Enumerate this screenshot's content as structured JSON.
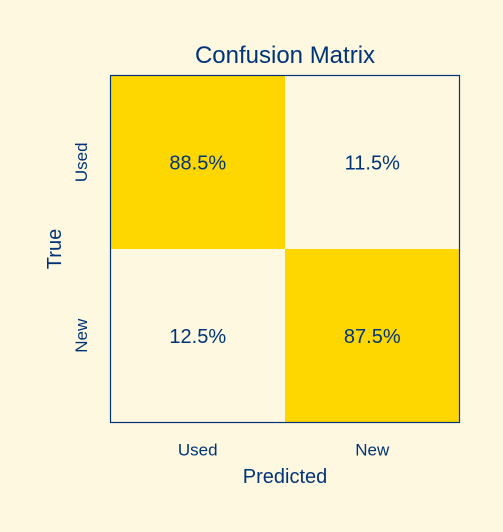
{
  "chart_data": {
    "type": "heatmap",
    "title": "Confusion Matrix",
    "xlabel": "Predicted",
    "ylabel": "True",
    "x_categories": [
      "Used",
      "New"
    ],
    "y_categories": [
      "Used",
      "New"
    ],
    "values": [
      [
        88.5,
        11.5
      ],
      [
        12.5,
        87.5
      ]
    ],
    "cell_labels": [
      [
        "88.5%",
        "11.5%"
      ],
      [
        "12.5%",
        "87.5%"
      ]
    ],
    "value_range": [
      0,
      100
    ],
    "colormap": {
      "low": "#FFF8E1",
      "high": "#FFD700"
    },
    "text_color": "#003478",
    "frame_color": "#003478",
    "grid": false,
    "legend": "none"
  }
}
